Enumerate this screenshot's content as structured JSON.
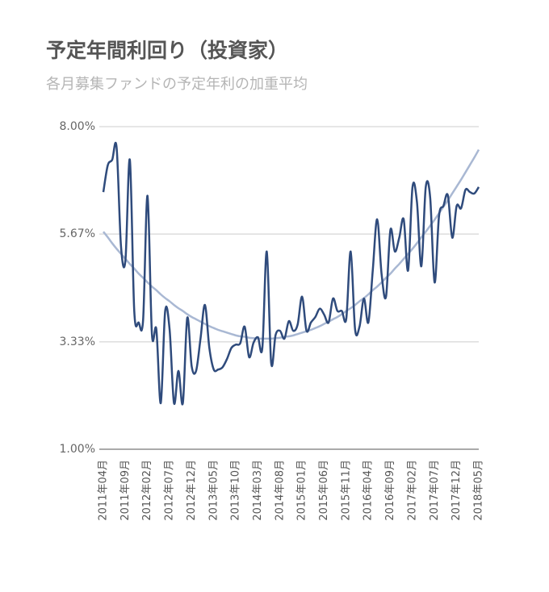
{
  "chart_data": {
    "type": "line",
    "title": "予定年間利回り（投資家）",
    "subtitle": "各月募集ファンドの予定年利の加重平均",
    "categories": [
      "2011年04月",
      null,
      null,
      null,
      null,
      "2011年09月",
      null,
      null,
      null,
      null,
      "2012年02月",
      null,
      null,
      null,
      null,
      "2012年07月",
      null,
      null,
      null,
      null,
      "2012年12月",
      null,
      null,
      null,
      null,
      "2013年05月",
      null,
      null,
      null,
      null,
      "2013年10月",
      null,
      null,
      null,
      null,
      "2014年03月",
      null,
      null,
      null,
      null,
      "2014年08月",
      null,
      null,
      null,
      null,
      "2015年01月",
      null,
      null,
      null,
      null,
      "2015年06月",
      null,
      null,
      null,
      null,
      "2015年11月",
      null,
      null,
      null,
      null,
      "2016年04月",
      null,
      null,
      null,
      null,
      "2016年09月",
      null,
      null,
      null,
      null,
      "2017年02月",
      null,
      null,
      null,
      null,
      "2017年07月",
      null,
      null,
      null,
      null,
      "2017年12月",
      null,
      null,
      null,
      null,
      "2018年05月"
    ],
    "series": [
      {
        "color": "#a9b8d3",
        "values": [
          5.72,
          5.6,
          5.47,
          5.35,
          5.24,
          5.13,
          5.02,
          4.92,
          4.81,
          4.72,
          4.62,
          4.53,
          4.45,
          4.36,
          4.28,
          4.21,
          4.13,
          4.06,
          4.0,
          3.93,
          3.87,
          3.82,
          3.77,
          3.72,
          3.67,
          3.63,
          3.59,
          3.56,
          3.53,
          3.5,
          3.47,
          3.45,
          3.44,
          3.42,
          3.41,
          3.4,
          3.4,
          3.4,
          3.4,
          3.41,
          3.42,
          3.44,
          3.45,
          3.47,
          3.5,
          3.53,
          3.56,
          3.59,
          3.63,
          3.67,
          3.72,
          3.77,
          3.82,
          3.87,
          3.93,
          4.0,
          4.06,
          4.13,
          4.21,
          4.28,
          4.36,
          4.45,
          4.53,
          4.62,
          4.72,
          4.81,
          4.92,
          5.02,
          5.13,
          5.24,
          5.35,
          5.47,
          5.6,
          5.72,
          5.85,
          5.98,
          6.12,
          6.26,
          6.4,
          6.55,
          6.7,
          6.85,
          7.01,
          7.17,
          7.33,
          7.5
        ]
      },
      {
        "color": "#2f4b7c",
        "values": [
          6.58,
          7.16,
          7.28,
          7.55,
          5.4,
          5.1,
          7.28,
          4.0,
          3.75,
          3.8,
          6.5,
          3.5,
          3.6,
          2.0,
          4.0,
          3.6,
          2.0,
          2.7,
          2.0,
          3.85,
          2.8,
          2.7,
          3.4,
          4.13,
          3.2,
          2.73,
          2.73,
          2.78,
          2.96,
          3.2,
          3.27,
          3.3,
          3.66,
          3.0,
          3.31,
          3.43,
          3.2,
          5.29,
          2.87,
          3.48,
          3.57,
          3.4,
          3.78,
          3.57,
          3.71,
          4.31,
          3.57,
          3.75,
          3.87,
          4.05,
          3.92,
          3.75,
          4.27,
          4.0,
          4.0,
          3.83,
          5.29,
          3.6,
          3.66,
          4.27,
          3.75,
          4.88,
          5.99,
          4.8,
          4.31,
          5.76,
          5.29,
          5.59,
          5.99,
          4.88,
          6.69,
          6.37,
          4.97,
          6.69,
          6.46,
          4.62,
          6.06,
          6.28,
          6.51,
          5.59,
          6.28,
          6.23,
          6.63,
          6.58,
          6.55,
          6.69
        ]
      }
    ],
    "ylim": [
      1,
      8
    ],
    "yticks": [
      {
        "value": 1,
        "label": "1.00%"
      },
      {
        "value": 3.33,
        "label": "3.33%"
      },
      {
        "value": 5.67,
        "label": "5.67%"
      },
      {
        "value": 8,
        "label": "8.00%"
      }
    ],
    "grid": true
  }
}
